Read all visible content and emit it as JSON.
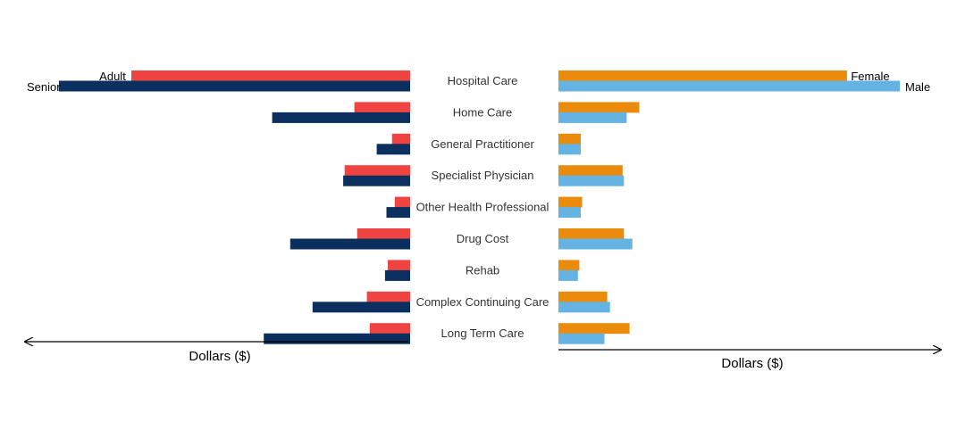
{
  "chart_data": {
    "type": "bar",
    "orientation": "horizontal-butterfly",
    "categories": [
      "Hospital Care",
      "Home Care",
      "General Practitioner",
      "Specialist Physician",
      "Other Health Professional",
      "Drug Cost",
      "Rehab",
      "Complex Continuing Care",
      "Long Term Care"
    ],
    "left_panel": {
      "xlabel": "Dollars ($)",
      "series": [
        {
          "name": "Adult",
          "color": "#f04443",
          "values": [
            100,
            20,
            6.5,
            23.5,
            5.5,
            19,
            8,
            15.5,
            14.5
          ]
        },
        {
          "name": "Senior",
          "color": "#0b2f5f",
          "values": [
            126,
            49.5,
            12,
            24,
            8.5,
            43,
            9,
            35,
            52.5
          ]
        }
      ]
    },
    "right_panel": {
      "xlabel": "Dollars ($)",
      "series": [
        {
          "name": "Female",
          "color": "#ea8b0c",
          "values": [
            103.5,
            29,
            8,
            23,
            8.5,
            23.5,
            7.5,
            17.5,
            25.5
          ]
        },
        {
          "name": "Male",
          "color": "#65b3e3",
          "values": [
            122.5,
            24.5,
            8,
            23.5,
            8,
            26.5,
            7,
            18.5,
            16.5
          ]
        }
      ]
    }
  }
}
